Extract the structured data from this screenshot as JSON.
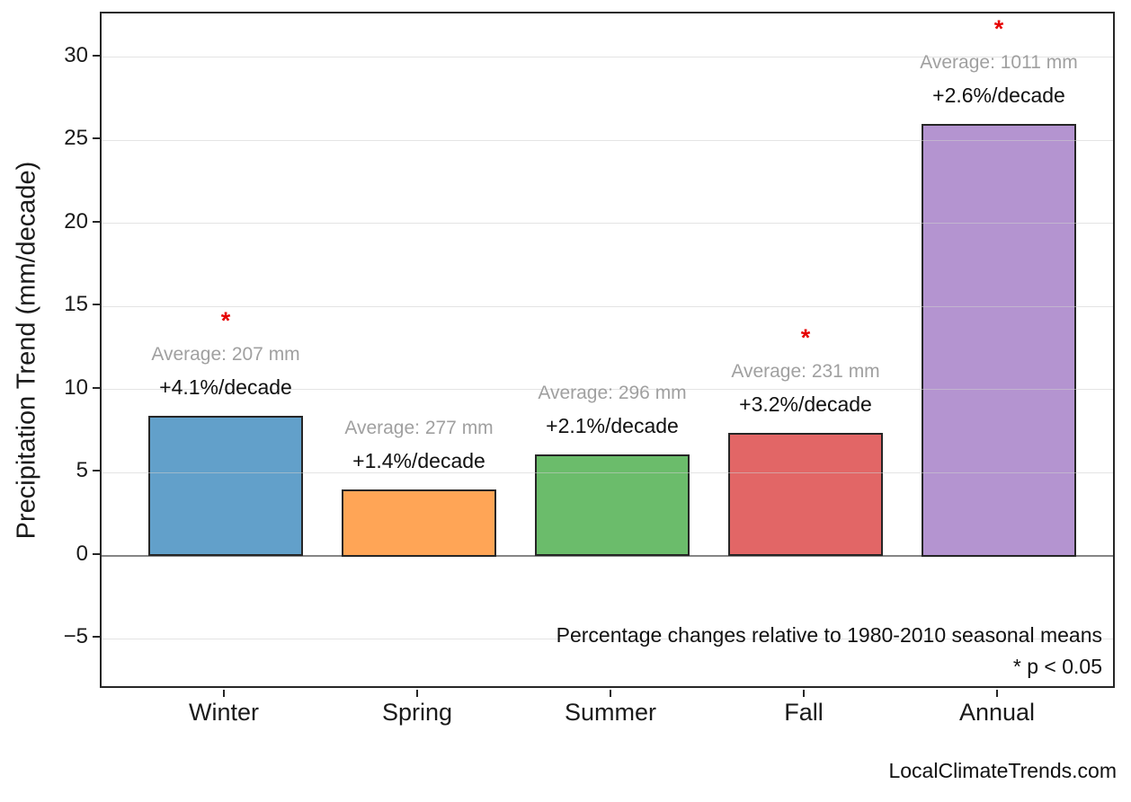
{
  "watermark": "LocalClimateTrends.com",
  "chart_data": {
    "type": "bar",
    "title": "",
    "ylabel": "Precipitation Trend (mm/decade)",
    "xlabel": "",
    "categories": [
      "Winter",
      "Spring",
      "Summer",
      "Fall",
      "Annual"
    ],
    "values": [
      8.4,
      4.0,
      6.1,
      7.4,
      26.0
    ],
    "averages_mm": [
      207,
      277,
      296,
      231,
      1011
    ],
    "trend_pct_per_decade": [
      4.1,
      1.4,
      2.1,
      3.2,
      2.6
    ],
    "significant": [
      true,
      false,
      false,
      true,
      true
    ],
    "annotations": [
      {
        "average_label": "Average: 207 mm",
        "trend_label": "+4.1%/decade"
      },
      {
        "average_label": "Average: 277 mm",
        "trend_label": "+1.4%/decade"
      },
      {
        "average_label": "Average: 296 mm",
        "trend_label": "+2.1%/decade"
      },
      {
        "average_label": "Average: 231 mm",
        "trend_label": "+3.2%/decade"
      },
      {
        "average_label": "Average: 1011 mm",
        "trend_label": "+2.6%/decade"
      }
    ],
    "significance_marker": "*",
    "significance_color": "#E60000",
    "average_label_color": "#A0A0A0",
    "bar_colors": [
      "#62A0CA",
      "#FFA556",
      "#6BBC6B",
      "#E26666",
      "#B494D0"
    ],
    "bar_edge_color": "#262626",
    "yticks": [
      -5,
      0,
      5,
      10,
      15,
      20,
      25,
      30
    ],
    "ylim": [
      -8.1,
      32.6
    ],
    "grid": "horizontal-light",
    "legend": "none",
    "footnote_line1": "Percentage changes relative to 1980-2010 seasonal means",
    "footnote_line2": "* p < 0.05"
  }
}
